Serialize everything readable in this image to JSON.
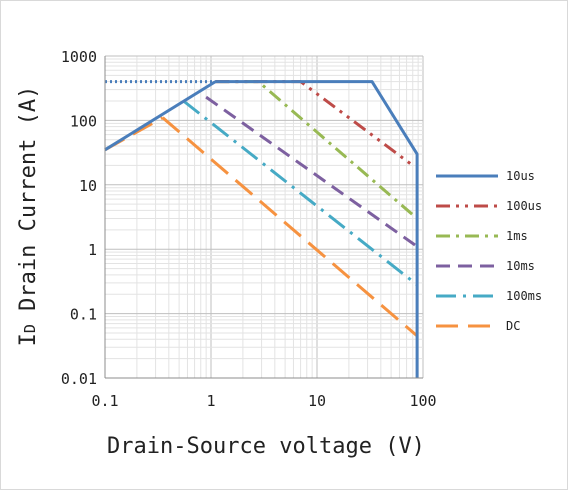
{
  "chart_data": {
    "type": "line",
    "title": "",
    "xlabel": "Drain-Source voltage (V)",
    "ylabel": "ID Drain Current (A)",
    "ylabel_main": "I",
    "ylabel_sub": "D",
    "ylabel_rest": " Drain Current (A)",
    "xscale": "log",
    "yscale": "log",
    "xlim": [
      0.1,
      100
    ],
    "ylim": [
      0.01,
      1000
    ],
    "xticks": [
      "0.1",
      "1",
      "10",
      "100"
    ],
    "yticks": [
      "0.01",
      "0.1",
      "1",
      "10",
      "100",
      "1000"
    ],
    "grid": true,
    "legend_position": "right",
    "series": [
      {
        "name": "10us",
        "color": "#4a7ebb",
        "dash": "solid",
        "x": [
          1.1,
          33,
          88,
          88
        ],
        "y": [
          400,
          400,
          30,
          0.01
        ]
      },
      {
        "name": "100us",
        "color": "#be4b48",
        "dash": "dashdotdot",
        "x": [
          1.1,
          7,
          80
        ],
        "y": [
          400,
          400,
          20
        ]
      },
      {
        "name": "1ms",
        "color": "#98b954",
        "dash": "dashdot",
        "x": [
          1.1,
          2.8,
          88
        ],
        "y": [
          400,
          400,
          3
        ]
      },
      {
        "name": "10ms",
        "color": "#7d60a0",
        "dash": "dash",
        "x": [
          0.9,
          88
        ],
        "y": [
          230,
          1.1
        ]
      },
      {
        "name": "100ms",
        "color": "#46aac5",
        "dash": "longdashdot",
        "x": [
          0.55,
          88
        ],
        "y": [
          200,
          0.28
        ]
      },
      {
        "name": "DC",
        "color": "#f69240",
        "dash": "longdash",
        "x": [
          0.35,
          88
        ],
        "y": [
          110,
          0.045
        ]
      }
    ],
    "rds_limit": {
      "color": "#4a7ebb",
      "x": [
        0.1,
        1.1
      ],
      "y": [
        35,
        400
      ]
    },
    "current_limit_dotted": {
      "color": "#4a7ebb",
      "x": [
        0.1,
        1.1
      ],
      "y": [
        400,
        400
      ]
    },
    "dc_rds_segment": {
      "color": "#f69240",
      "x": [
        0.1,
        0.35
      ],
      "y": [
        35,
        110
      ]
    }
  }
}
